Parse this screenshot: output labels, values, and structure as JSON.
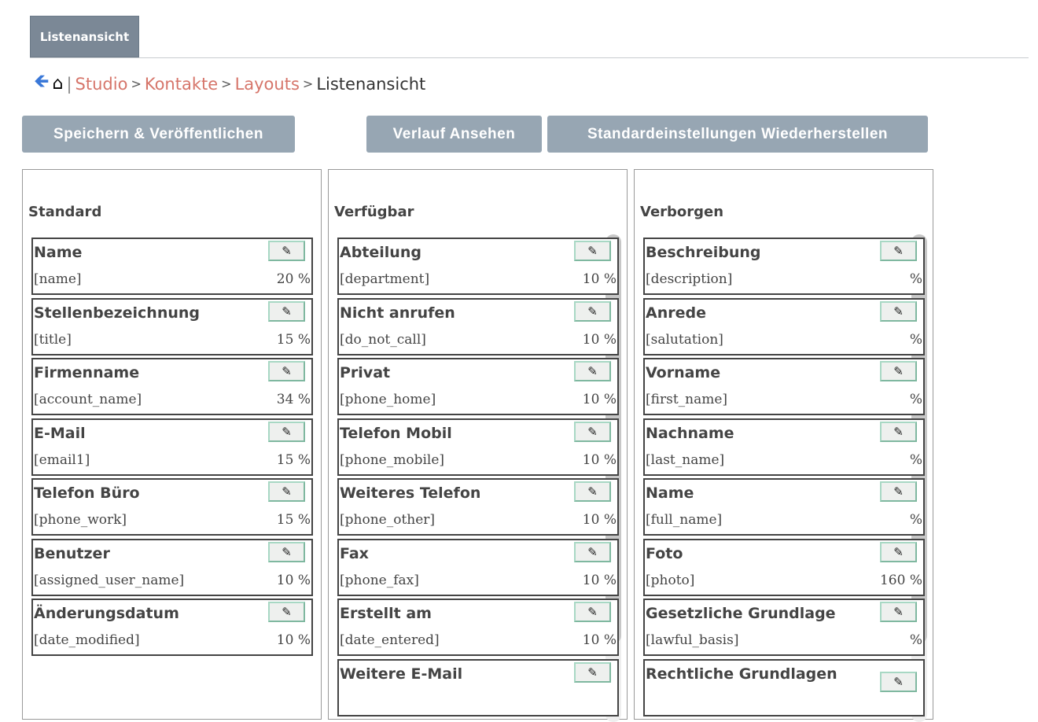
{
  "tab": "Listenansicht",
  "breadcrumb": {
    "sep": "|",
    "items": [
      "Studio",
      "Kontakte",
      "Layouts"
    ],
    "current": "Listenansicht",
    "gt": ">"
  },
  "buttons": {
    "save": "Speichern & Veröffentlichen",
    "history": "Verlauf Ansehen",
    "restore": "Standardeinstellungen Wiederherstellen"
  },
  "colors": {
    "link": "#d6756a",
    "button": "#97a6b3",
    "tab": "#7b8896"
  },
  "panels": [
    {
      "title": "Standard",
      "items": [
        {
          "label": "Name",
          "field": "[name]",
          "width": "20 %"
        },
        {
          "label": "Stellenbezeichnung",
          "field": "[title]",
          "width": "15 %"
        },
        {
          "label": "Firmenname",
          "field": "[account_name]",
          "width": "34 %"
        },
        {
          "label": "E-Mail",
          "field": "[email1]",
          "width": "15 %"
        },
        {
          "label": "Telefon Büro",
          "field": "[phone_work]",
          "width": "15 %"
        },
        {
          "label": "Benutzer",
          "field": "[assigned_user_name]",
          "width": "10 %"
        },
        {
          "label": "Änderungsdatum",
          "field": "[date_modified]",
          "width": "10 %"
        }
      ]
    },
    {
      "title": "Verfügbar",
      "items": [
        {
          "label": "Abteilung",
          "field": "[department]",
          "width": "10 %"
        },
        {
          "label": "Nicht anrufen",
          "field": "[do_not_call]",
          "width": "10 %"
        },
        {
          "label": "Privat",
          "field": "[phone_home]",
          "width": "10 %"
        },
        {
          "label": "Telefon Mobil",
          "field": "[phone_mobile]",
          "width": "10 %"
        },
        {
          "label": "Weiteres Telefon",
          "field": "[phone_other]",
          "width": "10 %"
        },
        {
          "label": "Fax",
          "field": "[phone_fax]",
          "width": "10 %"
        },
        {
          "label": "Erstellt am",
          "field": "[date_entered]",
          "width": "10 %"
        },
        {
          "label": "Weitere E-Mail",
          "field": "",
          "width": ""
        }
      ]
    },
    {
      "title": "Verborgen",
      "items": [
        {
          "label": "Beschreibung",
          "field": "[description]",
          "width": "%"
        },
        {
          "label": "Anrede",
          "field": "[salutation]",
          "width": "%"
        },
        {
          "label": "Vorname",
          "field": "[first_name]",
          "width": "%"
        },
        {
          "label": "Nachname",
          "field": "[last_name]",
          "width": "%"
        },
        {
          "label": "Name",
          "field": "[full_name]",
          "width": "%"
        },
        {
          "label": "Foto",
          "field": "[photo]",
          "width": "160 %"
        },
        {
          "label": "Gesetzliche Grundlage",
          "field": "[lawful_basis]",
          "width": "%"
        },
        {
          "label": "Rechtliche Grundlagen",
          "field": "",
          "width": ""
        }
      ]
    }
  ]
}
